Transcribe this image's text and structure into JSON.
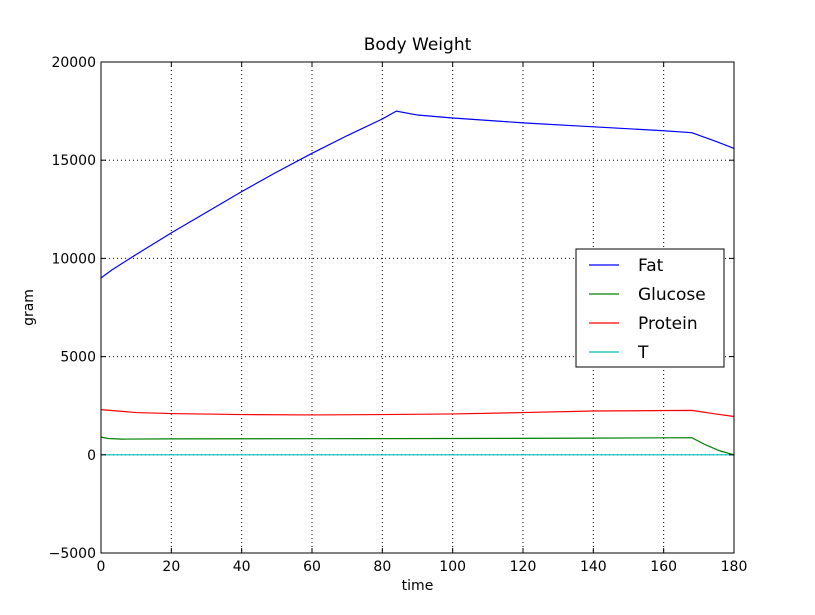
{
  "chart_data": {
    "type": "line",
    "title": "Body Weight",
    "xlabel": "time",
    "ylabel": "gram",
    "xlim": [
      0,
      180
    ],
    "ylim": [
      -5000,
      20000
    ],
    "xticks": [
      0,
      20,
      40,
      60,
      80,
      100,
      120,
      140,
      160,
      180
    ],
    "yticks": [
      -5000,
      0,
      5000,
      10000,
      15000,
      20000
    ],
    "xtick_labels": [
      "0",
      "20",
      "40",
      "60",
      "80",
      "100",
      "120",
      "140",
      "160",
      "180"
    ],
    "ytick_labels": [
      "−5000",
      "0",
      "5000",
      "10000",
      "15000",
      "20000"
    ],
    "grid": true,
    "legend_position": "center-right",
    "series": [
      {
        "name": "Fat",
        "color": "#0000ff",
        "x": [
          0,
          3,
          10,
          20,
          30,
          40,
          50,
          60,
          70,
          80,
          84,
          90,
          100,
          120,
          140,
          160,
          168,
          175,
          180
        ],
        "y": [
          9000,
          9400,
          10200,
          11300,
          12350,
          13400,
          14400,
          15350,
          16250,
          17100,
          17500,
          17300,
          17150,
          16900,
          16700,
          16500,
          16400,
          15950,
          15600
        ]
      },
      {
        "name": "Glucose",
        "color": "#008000",
        "x": [
          0,
          2,
          6,
          20,
          60,
          100,
          140,
          168,
          172,
          176,
          180
        ],
        "y": [
          900,
          830,
          800,
          810,
          820,
          830,
          850,
          870,
          500,
          200,
          0
        ]
      },
      {
        "name": "Protein",
        "color": "#ff0000",
        "x": [
          0,
          10,
          20,
          40,
          60,
          80,
          100,
          120,
          140,
          168,
          174,
          180
        ],
        "y": [
          2300,
          2150,
          2100,
          2050,
          2030,
          2050,
          2080,
          2150,
          2230,
          2260,
          2100,
          1950
        ]
      },
      {
        "name": "T",
        "color": "#00bfbf",
        "x": [
          0,
          180
        ],
        "y": [
          0,
          0
        ]
      }
    ]
  }
}
